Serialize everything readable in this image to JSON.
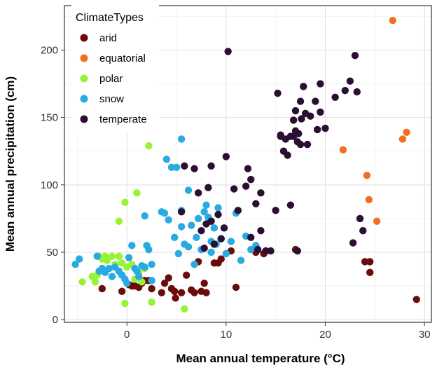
{
  "chart_data": {
    "type": "scatter",
    "xlabel": "Mean annual temperature (°C)",
    "ylabel": "Mean annual precipitation (cm)",
    "xlim": [
      -6.3,
      30.7
    ],
    "ylim": [
      -2,
      233
    ],
    "x_ticks": [
      0,
      10,
      20,
      30
    ],
    "y_ticks": [
      0,
      50,
      100,
      150,
      200
    ],
    "x_tick_labels": [
      "0",
      "10",
      "20",
      "30"
    ],
    "y_tick_labels": [
      "0",
      "50",
      "100",
      "150",
      "200"
    ],
    "grid": true,
    "legend": {
      "title": "ClimateTypes",
      "placement": "top-left inside"
    },
    "series": [
      {
        "name": "arid",
        "color": "#6b0b0b",
        "points": [
          [
            -2.5,
            23
          ],
          [
            -0.5,
            21
          ],
          [
            0.2,
            26
          ],
          [
            0.5,
            25
          ],
          [
            0.8,
            25
          ],
          [
            1.2,
            24
          ],
          [
            1.5,
            27
          ],
          [
            1.8,
            29
          ],
          [
            2.2,
            29
          ],
          [
            2.5,
            23
          ],
          [
            3.5,
            20
          ],
          [
            3.8,
            27
          ],
          [
            4.2,
            31
          ],
          [
            4.5,
            23
          ],
          [
            4.8,
            21
          ],
          [
            4.9,
            16
          ],
          [
            5.5,
            20
          ],
          [
            6.0,
            33
          ],
          [
            6.5,
            22
          ],
          [
            6.8,
            20
          ],
          [
            7.2,
            43
          ],
          [
            7.5,
            21
          ],
          [
            7.8,
            27
          ],
          [
            8.0,
            20
          ],
          [
            8.8,
            42
          ],
          [
            9.2,
            42
          ],
          [
            9.5,
            45
          ],
          [
            10.5,
            51
          ],
          [
            11.0,
            24
          ],
          [
            13.0,
            50
          ],
          [
            13.8,
            49
          ],
          [
            17.0,
            52
          ],
          [
            24.0,
            43
          ],
          [
            24.5,
            35
          ],
          [
            24.5,
            43
          ],
          [
            29.2,
            15
          ]
        ]
      },
      {
        "name": "equatorial",
        "color": "#f26f21",
        "points": [
          [
            21.8,
            126
          ],
          [
            24.2,
            107
          ],
          [
            24.4,
            89
          ],
          [
            25.2,
            73
          ],
          [
            26.8,
            222
          ],
          [
            27.8,
            134
          ],
          [
            28.2,
            139
          ]
        ]
      },
      {
        "name": "polar",
        "color": "#96f336",
        "points": [
          [
            -4.5,
            28
          ],
          [
            -3.5,
            32
          ],
          [
            -3.2,
            28
          ],
          [
            -3.0,
            33
          ],
          [
            -2.8,
            47
          ],
          [
            -2.5,
            45
          ],
          [
            -2.2,
            47
          ],
          [
            -2.0,
            44
          ],
          [
            -1.5,
            47
          ],
          [
            -1.2,
            41
          ],
          [
            -0.8,
            47
          ],
          [
            -0.5,
            42
          ],
          [
            -0.2,
            87
          ],
          [
            -0.2,
            12
          ],
          [
            0.0,
            39
          ],
          [
            0.5,
            41
          ],
          [
            0.8,
            30
          ],
          [
            1.0,
            94
          ],
          [
            1.2,
            35
          ],
          [
            1.5,
            28
          ],
          [
            1.8,
            38
          ],
          [
            2.2,
            129
          ],
          [
            2.5,
            13
          ],
          [
            5.8,
            8
          ],
          [
            -0.8,
            73
          ]
        ]
      },
      {
        "name": "snow",
        "color": "#29abe2",
        "points": [
          [
            -5.2,
            41
          ],
          [
            -4.8,
            45
          ],
          [
            -3.0,
            47
          ],
          [
            -2.8,
            36
          ],
          [
            -2.5,
            38
          ],
          [
            -2.2,
            35
          ],
          [
            -1.8,
            38
          ],
          [
            -1.5,
            32
          ],
          [
            -1.2,
            39
          ],
          [
            -0.8,
            36
          ],
          [
            -0.5,
            33
          ],
          [
            -0.2,
            30
          ],
          [
            0.0,
            27
          ],
          [
            0.2,
            46
          ],
          [
            0.5,
            55
          ],
          [
            0.8,
            38
          ],
          [
            1.0,
            36
          ],
          [
            1.2,
            32
          ],
          [
            1.5,
            40
          ],
          [
            1.8,
            77
          ],
          [
            1.8,
            39
          ],
          [
            2.0,
            55
          ],
          [
            2.2,
            52
          ],
          [
            2.5,
            41
          ],
          [
            2.5,
            29
          ],
          [
            3.5,
            80
          ],
          [
            3.8,
            79
          ],
          [
            4.0,
            119
          ],
          [
            4.2,
            74
          ],
          [
            4.5,
            113
          ],
          [
            4.8,
            61
          ],
          [
            5.0,
            113
          ],
          [
            5.2,
            49
          ],
          [
            5.5,
            69
          ],
          [
            5.5,
            81
          ],
          [
            5.5,
            134
          ],
          [
            5.8,
            56
          ],
          [
            6.2,
            54
          ],
          [
            6.2,
            96
          ],
          [
            6.5,
            70
          ],
          [
            6.8,
            41
          ],
          [
            7.0,
            61
          ],
          [
            7.2,
            75
          ],
          [
            7.5,
            52
          ],
          [
            7.8,
            80
          ],
          [
            8.0,
            85
          ],
          [
            8.2,
            76
          ],
          [
            8.5,
            58
          ],
          [
            8.5,
            50
          ],
          [
            8.8,
            68
          ],
          [
            9.0,
            56
          ],
          [
            9.2,
            83
          ],
          [
            9.5,
            60
          ],
          [
            10.0,
            49
          ],
          [
            10.5,
            58
          ],
          [
            11.0,
            79
          ],
          [
            11.5,
            44
          ],
          [
            12.0,
            62
          ],
          [
            12.5,
            52
          ],
          [
            13.0,
            55
          ]
        ]
      },
      {
        "name": "temperate",
        "color": "#2a0f33",
        "points": [
          [
            5.5,
            80
          ],
          [
            5.8,
            114
          ],
          [
            6.8,
            112
          ],
          [
            7.2,
            94
          ],
          [
            7.5,
            66
          ],
          [
            7.8,
            53
          ],
          [
            8.0,
            71
          ],
          [
            8.2,
            98
          ],
          [
            8.5,
            73
          ],
          [
            8.5,
            114
          ],
          [
            8.8,
            56
          ],
          [
            9.2,
            78
          ],
          [
            9.5,
            60
          ],
          [
            9.8,
            68
          ],
          [
            10.0,
            121
          ],
          [
            10.2,
            199
          ],
          [
            10.8,
            97
          ],
          [
            11.2,
            81
          ],
          [
            12.0,
            99
          ],
          [
            12.2,
            112
          ],
          [
            12.5,
            104
          ],
          [
            12.5,
            61
          ],
          [
            13.0,
            86
          ],
          [
            13.2,
            52
          ],
          [
            13.5,
            94
          ],
          [
            13.5,
            66
          ],
          [
            14.0,
            51
          ],
          [
            14.5,
            51
          ],
          [
            15.0,
            81
          ],
          [
            15.2,
            168
          ],
          [
            15.5,
            136
          ],
          [
            15.8,
            125
          ],
          [
            16.0,
            134
          ],
          [
            16.2,
            122
          ],
          [
            16.5,
            85
          ],
          [
            16.5,
            136
          ],
          [
            16.8,
            148
          ],
          [
            17.0,
            155
          ],
          [
            17.0,
            140
          ],
          [
            17.2,
            132
          ],
          [
            17.2,
            51
          ],
          [
            17.5,
            162
          ],
          [
            17.5,
            130
          ],
          [
            17.8,
            173
          ],
          [
            18.0,
            153
          ],
          [
            18.2,
            130
          ],
          [
            18.5,
            151
          ],
          [
            19.0,
            162
          ],
          [
            19.2,
            141
          ],
          [
            19.5,
            175
          ],
          [
            19.5,
            154
          ],
          [
            20.0,
            142
          ],
          [
            21.0,
            165
          ],
          [
            22.0,
            170
          ],
          [
            22.5,
            177
          ],
          [
            23.0,
            196
          ],
          [
            23.2,
            169
          ],
          [
            23.5,
            75
          ],
          [
            23.8,
            66
          ],
          [
            22.8,
            57
          ],
          [
            16.8,
            136
          ],
          [
            17.3,
            138
          ],
          [
            15.5,
            137
          ],
          [
            17.6,
            149
          ]
        ]
      }
    ]
  }
}
